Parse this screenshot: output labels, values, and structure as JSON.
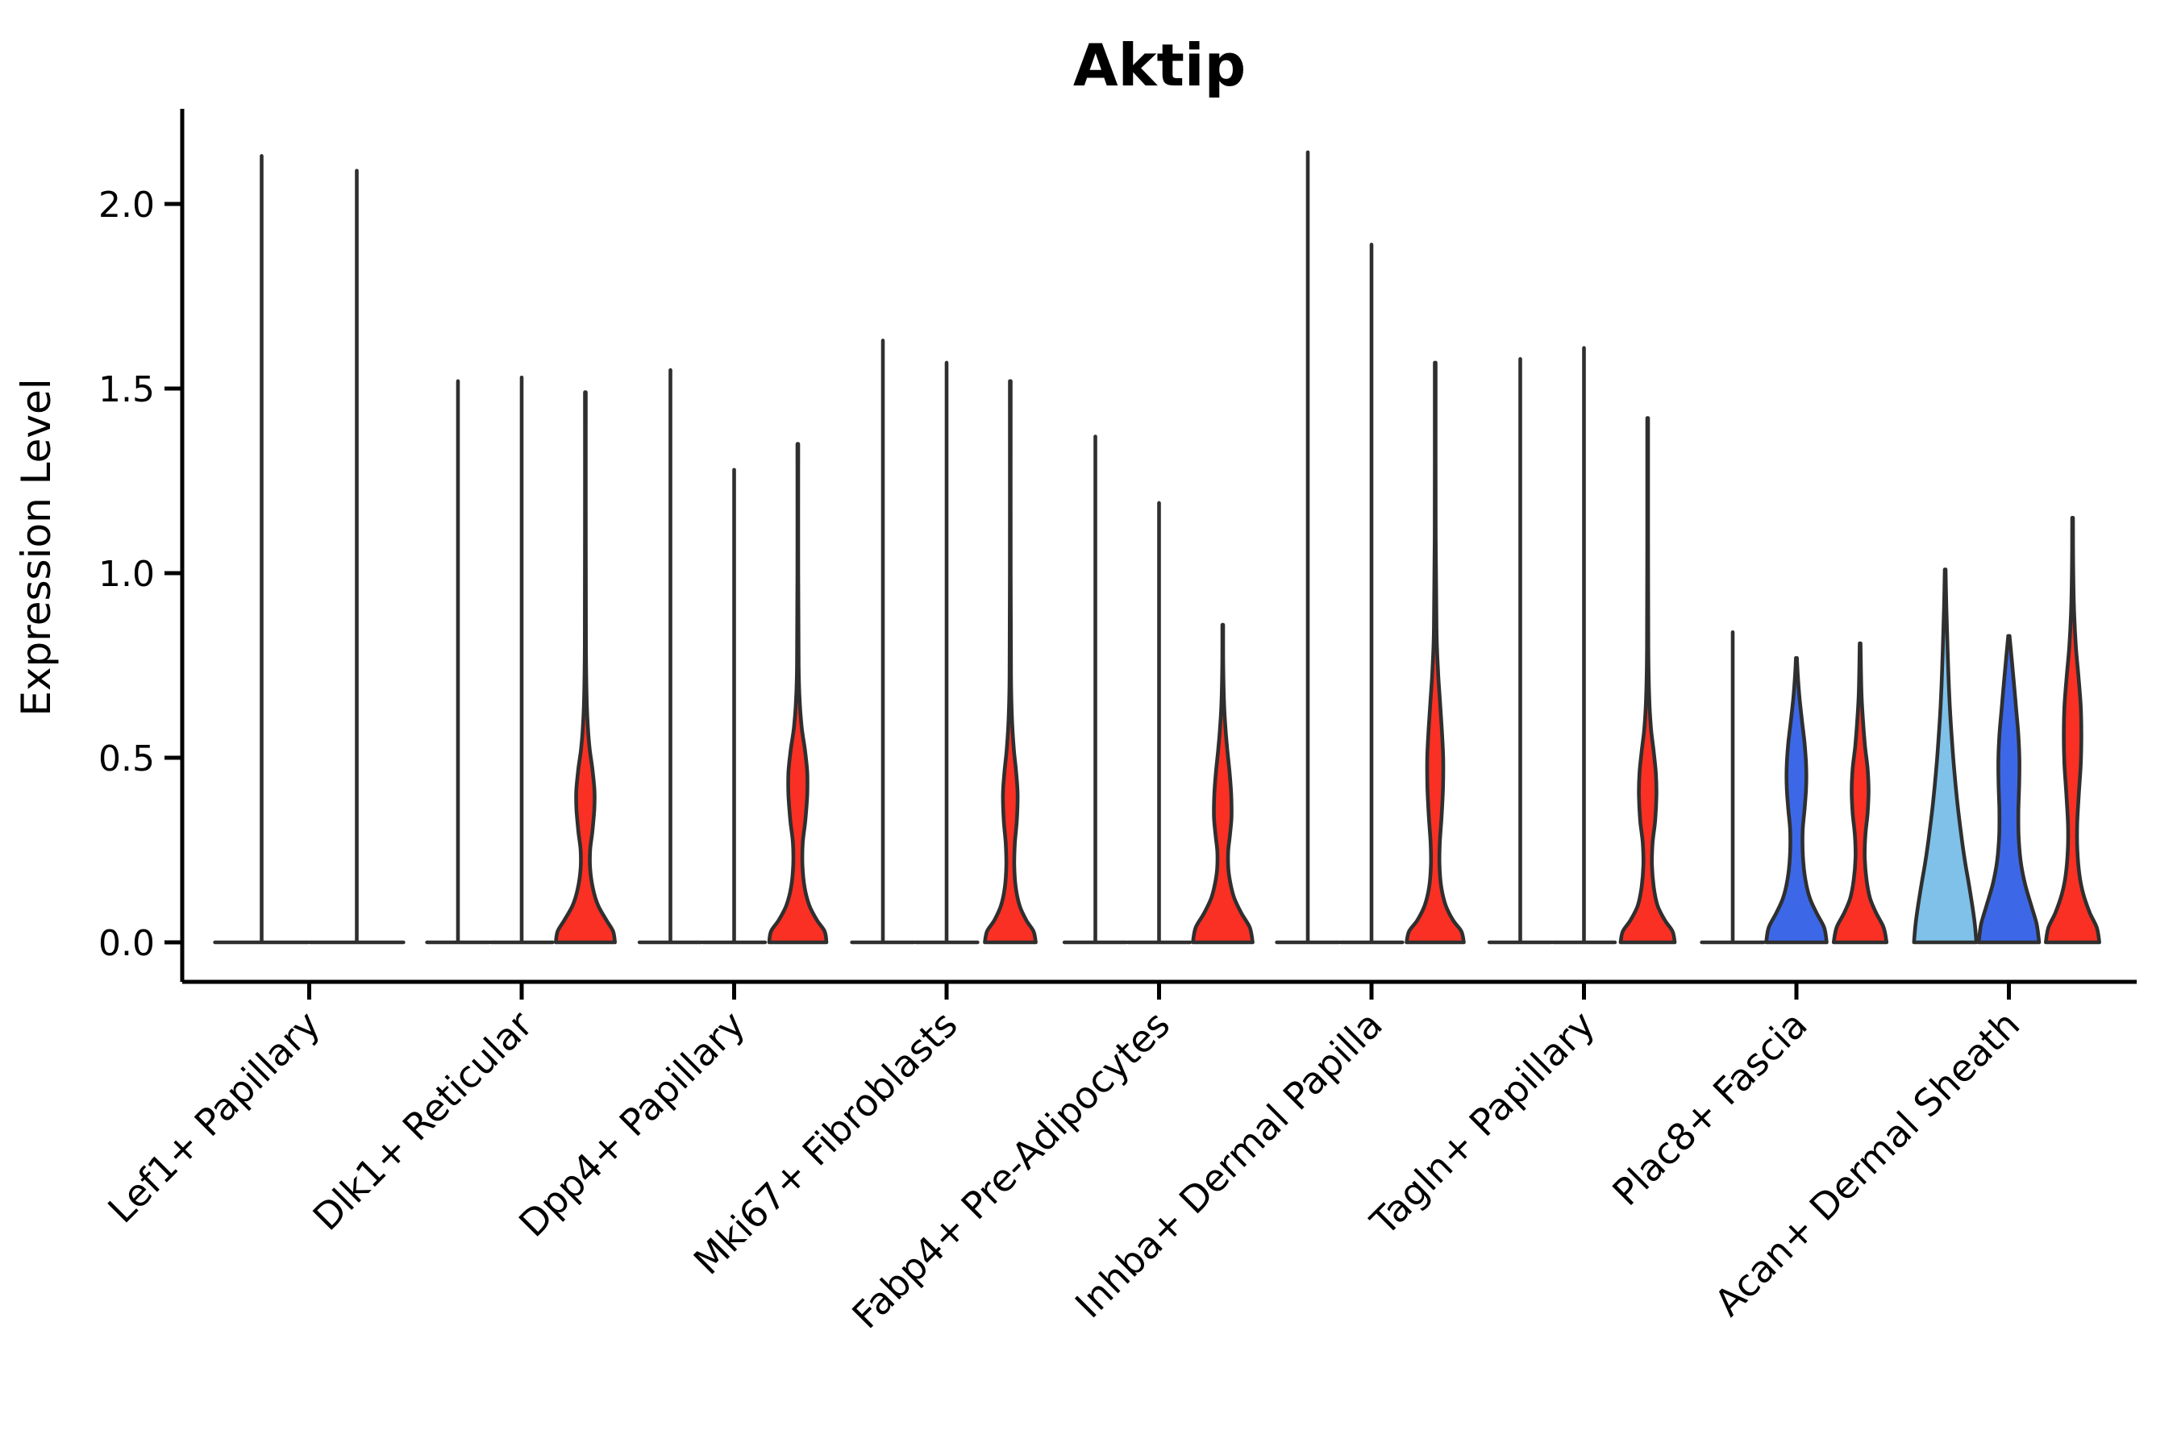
{
  "chart_data": {
    "type": "violin",
    "title": "Aktip",
    "ylabel": "Expression Level",
    "xlabel": "",
    "ylim": [
      -0.11,
      2.26
    ],
    "grid": false,
    "legend_position": "none",
    "yticks": [
      {
        "value": 0.0,
        "label": "0.0"
      },
      {
        "value": 0.5,
        "label": "0.5"
      },
      {
        "value": 1.0,
        "label": "1.0"
      },
      {
        "value": 1.5,
        "label": "1.5"
      },
      {
        "value": 2.0,
        "label": "2.0"
      }
    ],
    "categories": [
      "Lef1+ Papillary",
      "Dlk1+ Reticular",
      "Dpp4+ Papillary",
      "Mki67+ Fibroblasts",
      "Fabp4+ Pre-Adipocytes",
      "Inhba+ Dermal Papilla",
      "Tagln+ Papillary",
      "Plac8+ Fascia",
      "Acan+ Dermal Sheath"
    ],
    "palette": {
      "outline": "#2f2f2f",
      "axis": "#000000",
      "red": "#f93023",
      "blue": "#3c68e8",
      "sky": "#7fc1e9"
    },
    "violins": [
      {
        "category": "Lef1+ Papillary",
        "items": [
          {
            "style": "spike",
            "max": 2.13
          },
          {
            "style": "spike",
            "max": 2.09
          }
        ]
      },
      {
        "category": "Dlk1+ Reticular",
        "items": [
          {
            "style": "spike",
            "max": 1.52
          },
          {
            "style": "spike",
            "max": 1.53
          },
          {
            "style": "violin",
            "fill": "red",
            "max": 1.49,
            "profile": [
              [
                0,
                0.93
              ],
              [
                0.03,
                0.87
              ],
              [
                0.06,
                0.66
              ],
              [
                0.1,
                0.4
              ],
              [
                0.145,
                0.24
              ],
              [
                0.2,
                0.15
              ],
              [
                0.25,
                0.15
              ],
              [
                0.3,
                0.22
              ],
              [
                0.36,
                0.28
              ],
              [
                0.41,
                0.285
              ],
              [
                0.47,
                0.22
              ],
              [
                0.52,
                0.14
              ],
              [
                0.58,
                0.08
              ],
              [
                0.66,
                0.04
              ],
              [
                0.8,
                0.018
              ],
              [
                1.1,
                0.012
              ],
              [
                1.49,
                0.012
              ]
            ]
          }
        ]
      },
      {
        "category": "Dpp4+ Papillary",
        "items": [
          {
            "style": "spike",
            "max": 1.55
          },
          {
            "style": "spike",
            "max": 1.28
          },
          {
            "style": "violin",
            "fill": "red",
            "max": 1.35,
            "profile": [
              [
                0,
                0.9
              ],
              [
                0.03,
                0.84
              ],
              [
                0.06,
                0.6
              ],
              [
                0.1,
                0.36
              ],
              [
                0.15,
                0.21
              ],
              [
                0.21,
                0.145
              ],
              [
                0.27,
                0.155
              ],
              [
                0.33,
                0.235
              ],
              [
                0.4,
                0.295
              ],
              [
                0.46,
                0.295
              ],
              [
                0.52,
                0.225
              ],
              [
                0.58,
                0.125
              ],
              [
                0.65,
                0.06
              ],
              [
                0.75,
                0.025
              ],
              [
                1.0,
                0.013
              ],
              [
                1.35,
                0.012
              ]
            ]
          }
        ]
      },
      {
        "category": "Mki67+ Fibroblasts",
        "items": [
          {
            "style": "spike",
            "max": 1.63
          },
          {
            "style": "spike",
            "max": 1.57
          },
          {
            "style": "violin",
            "fill": "red",
            "max": 1.52,
            "profile": [
              [
                0,
                0.8
              ],
              [
                0.03,
                0.73
              ],
              [
                0.06,
                0.5
              ],
              [
                0.1,
                0.29
              ],
              [
                0.15,
                0.17
              ],
              [
                0.21,
                0.125
              ],
              [
                0.27,
                0.145
              ],
              [
                0.33,
                0.205
              ],
              [
                0.4,
                0.23
              ],
              [
                0.46,
                0.185
              ],
              [
                0.52,
                0.115
              ],
              [
                0.6,
                0.055
              ],
              [
                0.72,
                0.022
              ],
              [
                1.0,
                0.013
              ],
              [
                1.52,
                0.012
              ]
            ]
          }
        ]
      },
      {
        "category": "Fabp4+ Pre-Adipocytes",
        "items": [
          {
            "style": "spike",
            "max": 1.37
          },
          {
            "style": "spike",
            "max": 1.19
          },
          {
            "style": "violin",
            "fill": "red",
            "max": 0.86,
            "profile": [
              [
                0,
                0.94
              ],
              [
                0.04,
                0.85
              ],
              [
                0.08,
                0.58
              ],
              [
                0.12,
                0.36
              ],
              [
                0.16,
                0.24
              ],
              [
                0.2,
                0.175
              ],
              [
                0.245,
                0.17
              ],
              [
                0.29,
                0.225
              ],
              [
                0.34,
                0.275
              ],
              [
                0.4,
                0.265
              ],
              [
                0.46,
                0.215
              ],
              [
                0.52,
                0.145
              ],
              [
                0.58,
                0.085
              ],
              [
                0.65,
                0.04
              ],
              [
                0.75,
                0.016
              ],
              [
                0.86,
                0.012
              ]
            ]
          }
        ]
      },
      {
        "category": "Inhba+ Dermal Papilla",
        "items": [
          {
            "style": "spike",
            "max": 2.14
          },
          {
            "style": "spike",
            "max": 1.89
          },
          {
            "style": "violin",
            "fill": "red",
            "max": 1.57,
            "profile": [
              [
                0,
                0.9
              ],
              [
                0.03,
                0.82
              ],
              [
                0.06,
                0.56
              ],
              [
                0.1,
                0.33
              ],
              [
                0.15,
                0.19
              ],
              [
                0.21,
                0.135
              ],
              [
                0.27,
                0.145
              ],
              [
                0.34,
                0.2
              ],
              [
                0.42,
                0.245
              ],
              [
                0.5,
                0.25
              ],
              [
                0.58,
                0.205
              ],
              [
                0.66,
                0.145
              ],
              [
                0.74,
                0.085
              ],
              [
                0.85,
                0.04
              ],
              [
                1.1,
                0.015
              ],
              [
                1.57,
                0.012
              ]
            ]
          }
        ]
      },
      {
        "category": "Tagln+ Papillary",
        "items": [
          {
            "style": "spike",
            "max": 1.58
          },
          {
            "style": "spike",
            "max": 1.61
          },
          {
            "style": "violin",
            "fill": "red",
            "max": 1.42,
            "profile": [
              [
                0,
                0.85
              ],
              [
                0.03,
                0.78
              ],
              [
                0.06,
                0.54
              ],
              [
                0.1,
                0.31
              ],
              [
                0.15,
                0.19
              ],
              [
                0.21,
                0.135
              ],
              [
                0.27,
                0.155
              ],
              [
                0.33,
                0.235
              ],
              [
                0.4,
                0.275
              ],
              [
                0.46,
                0.255
              ],
              [
                0.52,
                0.185
              ],
              [
                0.58,
                0.105
              ],
              [
                0.66,
                0.05
              ],
              [
                0.8,
                0.02
              ],
              [
                1.1,
                0.013
              ],
              [
                1.42,
                0.012
              ]
            ]
          }
        ]
      },
      {
        "category": "Plac8+ Fascia",
        "items": [
          {
            "style": "spike",
            "max": 0.84
          },
          {
            "style": "violin",
            "fill": "blue",
            "max": 0.77,
            "profile": [
              [
                0,
                0.95
              ],
              [
                0.04,
                0.87
              ],
              [
                0.08,
                0.63
              ],
              [
                0.12,
                0.42
              ],
              [
                0.17,
                0.28
              ],
              [
                0.23,
                0.205
              ],
              [
                0.3,
                0.195
              ],
              [
                0.36,
                0.255
              ],
              [
                0.42,
                0.305
              ],
              [
                0.48,
                0.305
              ],
              [
                0.54,
                0.255
              ],
              [
                0.6,
                0.175
              ],
              [
                0.66,
                0.1
              ],
              [
                0.72,
                0.045
              ],
              [
                0.77,
                0.015
              ]
            ]
          },
          {
            "style": "violin",
            "fill": "red",
            "max": 0.81,
            "profile": [
              [
                0,
                0.83
              ],
              [
                0.04,
                0.74
              ],
              [
                0.08,
                0.5
              ],
              [
                0.12,
                0.31
              ],
              [
                0.17,
                0.2
              ],
              [
                0.23,
                0.145
              ],
              [
                0.29,
                0.165
              ],
              [
                0.35,
                0.235
              ],
              [
                0.41,
                0.265
              ],
              [
                0.47,
                0.235
              ],
              [
                0.53,
                0.155
              ],
              [
                0.6,
                0.09
              ],
              [
                0.68,
                0.04
              ],
              [
                0.81,
                0.013
              ]
            ]
          }
        ]
      },
      {
        "category": "Acan+ Dermal Sheath",
        "items": [
          {
            "style": "violin",
            "fill": "sky",
            "max": 1.01,
            "profile": [
              [
                0,
                0.98
              ],
              [
                0.05,
                0.93
              ],
              [
                0.1,
                0.85
              ],
              [
                0.16,
                0.74
              ],
              [
                0.22,
                0.62
              ],
              [
                0.3,
                0.49
              ],
              [
                0.38,
                0.38
              ],
              [
                0.46,
                0.29
              ],
              [
                0.55,
                0.21
              ],
              [
                0.64,
                0.145
              ],
              [
                0.74,
                0.095
              ],
              [
                0.85,
                0.055
              ],
              [
                0.93,
                0.03
              ],
              [
                1.01,
                0.013
              ]
            ]
          },
          {
            "style": "violin",
            "fill": "blue",
            "max": 0.83,
            "profile": [
              [
                0,
                0.95
              ],
              [
                0.05,
                0.87
              ],
              [
                0.1,
                0.7
              ],
              [
                0.16,
                0.5
              ],
              [
                0.22,
                0.37
              ],
              [
                0.29,
                0.305
              ],
              [
                0.36,
                0.3
              ],
              [
                0.43,
                0.325
              ],
              [
                0.5,
                0.33
              ],
              [
                0.57,
                0.29
              ],
              [
                0.64,
                0.22
              ],
              [
                0.71,
                0.15
              ],
              [
                0.77,
                0.085
              ],
              [
                0.83,
                0.02
              ]
            ]
          },
          {
            "style": "violin",
            "fill": "red",
            "max": 1.15,
            "profile": [
              [
                0,
                0.84
              ],
              [
                0.04,
                0.76
              ],
              [
                0.08,
                0.54
              ],
              [
                0.13,
                0.34
              ],
              [
                0.18,
                0.22
              ],
              [
                0.25,
                0.15
              ],
              [
                0.32,
                0.145
              ],
              [
                0.4,
                0.195
              ],
              [
                0.48,
                0.255
              ],
              [
                0.56,
                0.275
              ],
              [
                0.64,
                0.255
              ],
              [
                0.72,
                0.185
              ],
              [
                0.8,
                0.105
              ],
              [
                0.9,
                0.045
              ],
              [
                1.03,
                0.018
              ],
              [
                1.15,
                0.012
              ]
            ]
          }
        ]
      }
    ]
  }
}
